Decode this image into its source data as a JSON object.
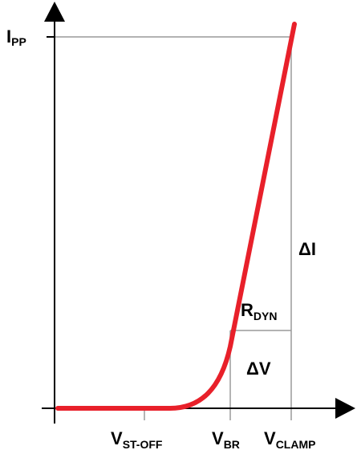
{
  "diagram": {
    "labels": {
      "ipp": {
        "main": "I",
        "sub": "PP"
      },
      "vst_off": {
        "main": "V",
        "sub": "ST-OFF"
      },
      "vbr": {
        "main": "V",
        "sub": "BR"
      },
      "vclamp": {
        "main": "V",
        "sub": "CLAMP"
      },
      "rdyn": {
        "main": "R",
        "sub": "DYN"
      },
      "delta_i": "ΔI",
      "delta_v": "ΔV"
    },
    "colors": {
      "curve": "#e8202a",
      "axis": "#000000",
      "guide_lines": "#9a9a9a",
      "text": "#000000"
    }
  }
}
